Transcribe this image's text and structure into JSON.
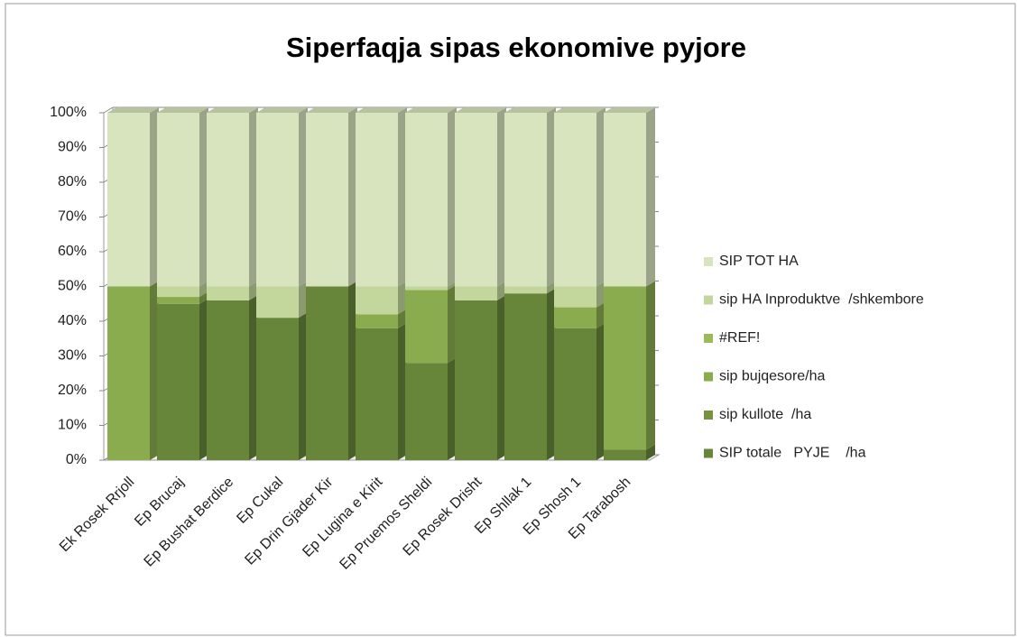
{
  "chart_data": {
    "type": "bar3d_stacked_percent",
    "title": "Siperfaqja sipas ekonomive pyjore",
    "categories": [
      "Ek Rosek Rrjoll",
      "Ep Brucaj",
      "Ep Bushat Berdice",
      "Ep Cukal",
      "Ep Drin Gjader Kir",
      "Ep Lugina e Kirit",
      "Ep Pruemos Sheldi",
      "Ep Rosek Drisht",
      "Ep Shllak 1",
      "Ep Shosh 1",
      "Ep Tarabosh"
    ],
    "series": [
      {
        "name": "SIP totale   PYJE    /ha",
        "color": "#67863a",
        "values": [
          0,
          45,
          46,
          41,
          50,
          38,
          28,
          46,
          48,
          38,
          3
        ]
      },
      {
        "name": "sip kullote  /ha",
        "color": "#77933c",
        "values": [
          0,
          0,
          0,
          0,
          0,
          0,
          0,
          0,
          0,
          0,
          0
        ]
      },
      {
        "name": "sip bujqesore/ha",
        "color": "#8aab4e",
        "values": [
          50,
          2,
          0,
          0,
          0,
          4,
          21,
          0,
          0,
          6,
          47
        ]
      },
      {
        "name": "#REF!",
        "color": "#9bbb59",
        "values": [
          0,
          0,
          0,
          0,
          0,
          0,
          0,
          0,
          0,
          0,
          0
        ]
      },
      {
        "name": "sip HA Inproduktve  /shkembore",
        "color": "#c3d69b",
        "values": [
          0,
          3,
          4,
          9,
          0,
          8,
          1,
          4,
          2,
          6,
          0
        ]
      },
      {
        "name": "SIP TOT HA",
        "color": "#d7e4bd",
        "values": [
          50,
          50,
          50,
          50,
          50,
          50,
          50,
          50,
          50,
          50,
          50
        ]
      }
    ],
    "ylim": [
      0,
      100
    ],
    "yticks": [
      {
        "value": 0,
        "label": "0%"
      },
      {
        "value": 10,
        "label": "10%"
      },
      {
        "value": 20,
        "label": "20%"
      },
      {
        "value": 30,
        "label": "30%"
      },
      {
        "value": 40,
        "label": "40%"
      },
      {
        "value": 50,
        "label": "50%"
      },
      {
        "value": 60,
        "label": "60%"
      },
      {
        "value": 70,
        "label": "70%"
      },
      {
        "value": 80,
        "label": "80%"
      },
      {
        "value": 90,
        "label": "90%"
      },
      {
        "value": 100,
        "label": "100%"
      }
    ],
    "grid": true,
    "legend": "right"
  }
}
